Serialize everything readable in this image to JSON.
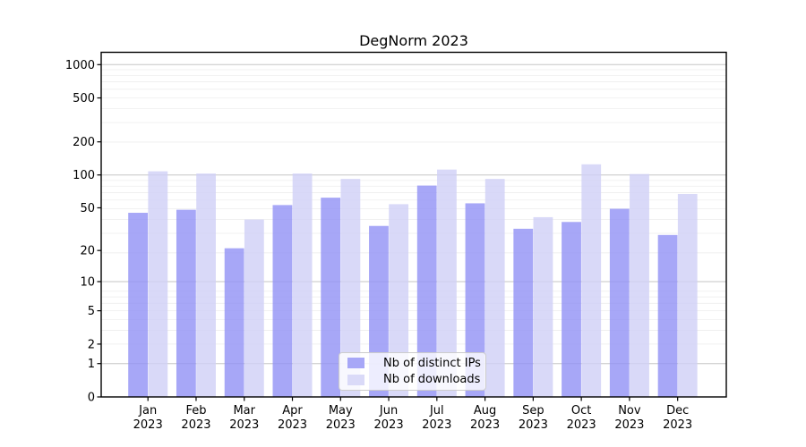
{
  "title": "DegNorm 2023",
  "legend": {
    "items": [
      {
        "label": "Nb of distinct IPs",
        "color": "#a7a7f7"
      },
      {
        "label": "Nb of downloads",
        "color": "#dadaf8"
      }
    ]
  },
  "chart_data": {
    "type": "bar",
    "title": "DegNorm 2023",
    "categories": [
      "Jan",
      "Feb",
      "Mar",
      "Apr",
      "May",
      "Jun",
      "Jul",
      "Aug",
      "Sep",
      "Oct",
      "Nov",
      "Dec"
    ],
    "year_label": "2023",
    "series": [
      {
        "name": "Nb of distinct IPs",
        "color": "rgba(145,145,245,0.8)",
        "color_solid": "#a7a7f7",
        "values": [
          45,
          48,
          21,
          53,
          62,
          34,
          80,
          55,
          32,
          37,
          49,
          28
        ]
      },
      {
        "name": "Nb of downloads",
        "color": "rgba(208,208,246,0.8)",
        "color_solid": "#dadaf8",
        "values": [
          108,
          103,
          39,
          103,
          92,
          54,
          112,
          92,
          41,
          125,
          102,
          67
        ]
      }
    ],
    "yscale": "log1p",
    "yticks": [
      0,
      1,
      2,
      5,
      10,
      20,
      50,
      100,
      200,
      500,
      1000
    ],
    "ylim": [
      0,
      1300
    ],
    "grid": {
      "on": true,
      "majors": [
        1,
        10,
        100,
        1000
      ],
      "major_color": "#c5c5c5",
      "minor_color": "#ededed"
    },
    "legend_position": "lower center",
    "axis_color": "#000000"
  }
}
